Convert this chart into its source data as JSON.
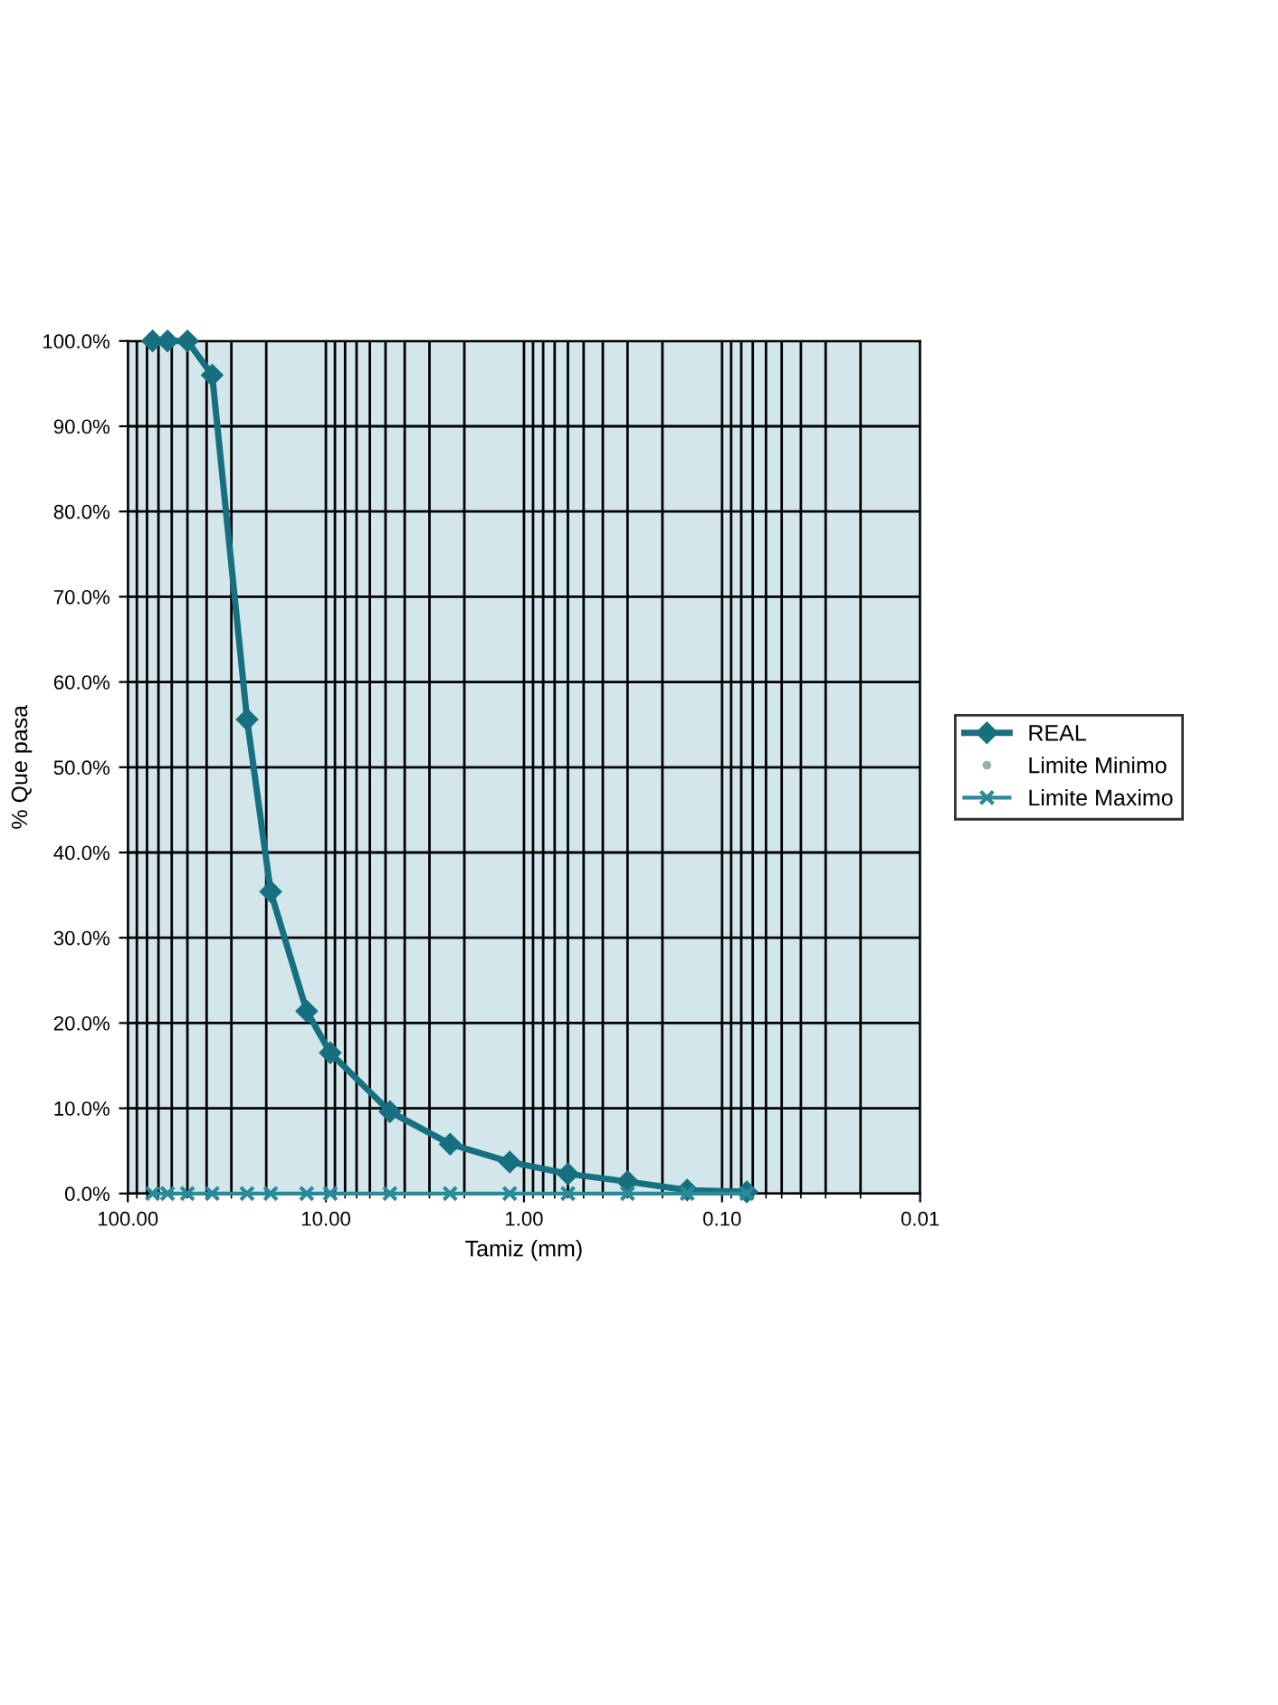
{
  "chart_data": {
    "type": "line",
    "xlabel": "Tamiz (mm)",
    "ylabel": "% Que pasa",
    "x": [
      75,
      63,
      50,
      37.5,
      25,
      19,
      12.5,
      9.5,
      4.75,
      2.36,
      1.18,
      0.6,
      0.3,
      0.15,
      0.075
    ],
    "series": [
      {
        "name": "REAL",
        "color": "#17707f",
        "marker": "diamond",
        "line_style": "solid",
        "values": [
          100,
          100,
          100,
          96,
          55.6,
          35.4,
          21.4,
          16.5,
          9.6,
          5.8,
          3.7,
          2.3,
          1.4,
          0.4,
          0.2
        ]
      },
      {
        "name": "Limite Minimo",
        "color": "#9aaeb3",
        "marker": "circle",
        "line_style": "none",
        "values": [
          null,
          null,
          null,
          null,
          null,
          null,
          null,
          null,
          null,
          null,
          null,
          null,
          null,
          null,
          null
        ]
      },
      {
        "name": "Limite Maximo",
        "color": "#2a8a99",
        "marker": "cross",
        "line_style": "solid",
        "values": [
          0,
          0,
          0,
          0,
          0,
          0,
          0,
          0,
          0,
          0,
          0,
          0,
          0,
          0,
          0
        ]
      }
    ],
    "log": "x",
    "xlim": [
      100,
      0.01
    ],
    "xticks": [
      {
        "value": 100,
        "label": "100.00"
      },
      {
        "value": 10,
        "label": "10.00"
      },
      {
        "value": 1,
        "label": "1.00"
      },
      {
        "value": 0.1,
        "label": "0.10"
      },
      {
        "value": 0.01,
        "label": "0.01"
      }
    ],
    "ylim": [
      0,
      100
    ],
    "yticks": [
      {
        "value": 0,
        "label": "0.0%"
      },
      {
        "value": 10,
        "label": "10.0%"
      },
      {
        "value": 20,
        "label": "20.0%"
      },
      {
        "value": 30,
        "label": "30.0%"
      },
      {
        "value": 40,
        "label": "40.0%"
      },
      {
        "value": 50,
        "label": "50.0%"
      },
      {
        "value": 60,
        "label": "60.0%"
      },
      {
        "value": 70,
        "label": "70.0%"
      },
      {
        "value": 80,
        "label": "80.0%"
      },
      {
        "value": 90,
        "label": "90.0%"
      },
      {
        "value": 100,
        "label": "100.0%"
      }
    ],
    "grid": true,
    "legend": "right"
  }
}
